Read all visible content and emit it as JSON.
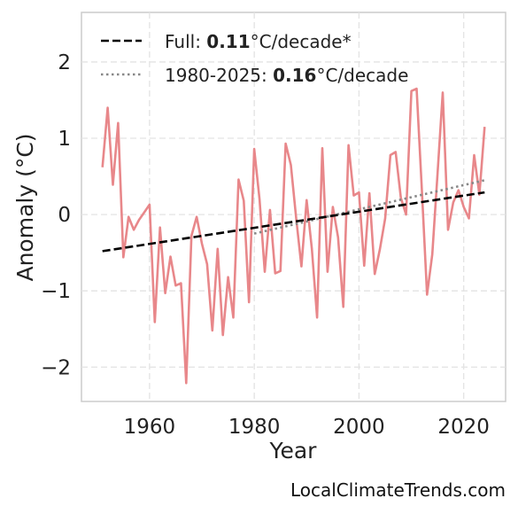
{
  "chart_data": {
    "type": "line",
    "title": "",
    "xlabel": "Year",
    "ylabel": "Anomaly (°C)",
    "xlim": [
      1947,
      2028
    ],
    "ylim": [
      -2.45,
      2.65
    ],
    "xticks": [
      1960,
      1980,
      2000,
      2020
    ],
    "yticks": [
      2,
      1,
      0,
      -1,
      -2
    ],
    "ytick_labels": [
      "2",
      "1",
      "0",
      "−1",
      "−2"
    ],
    "grid": true,
    "legend_position": "top-left",
    "series": [
      {
        "style": "solid",
        "color": "#e8878a",
        "x": [
          1951,
          1952,
          1953,
          1954,
          1955,
          1956,
          1957,
          1958,
          1959,
          1960,
          1961,
          1962,
          1963,
          1964,
          1965,
          1966,
          1967,
          1968,
          1969,
          1970,
          1971,
          1972,
          1973,
          1974,
          1975,
          1976,
          1977,
          1978,
          1979,
          1980,
          1981,
          1982,
          1983,
          1984,
          1985,
          1986,
          1987,
          1988,
          1989,
          1990,
          1991,
          1992,
          1993,
          1994,
          1995,
          1996,
          1997,
          1998,
          1999,
          2000,
          2001,
          2002,
          2003,
          2004,
          2005,
          2006,
          2007,
          2008,
          2009,
          2010,
          2011,
          2012,
          2013,
          2014,
          2015,
          2016,
          2017,
          2018,
          2019,
          2020,
          2021,
          2022,
          2023,
          2024
        ],
        "y": [
          0.62,
          1.4,
          0.39,
          1.2,
          -0.56,
          -0.03,
          -0.2,
          -0.07,
          0.03,
          0.13,
          -1.41,
          -0.17,
          -1.03,
          -0.55,
          -0.93,
          -0.9,
          -2.21,
          -0.28,
          -0.03,
          -0.38,
          -0.65,
          -1.52,
          -0.45,
          -1.58,
          -0.82,
          -1.35,
          0.46,
          0.18,
          -1.15,
          0.86,
          0.2,
          -0.75,
          0.06,
          -0.77,
          -0.74,
          0.93,
          0.65,
          -0.05,
          -0.68,
          0.19,
          -0.45,
          -1.35,
          0.87,
          -0.75,
          0.1,
          -0.3,
          -1.21,
          0.91,
          0.25,
          0.29,
          -0.67,
          0.28,
          -0.78,
          -0.45,
          -0.05,
          0.78,
          0.82,
          0.22,
          0.0,
          1.62,
          1.65,
          0.33,
          -1.05,
          -0.52,
          0.53,
          1.6,
          -0.2,
          0.16,
          0.32,
          0.1,
          -0.05,
          0.78,
          0.26,
          1.15
        ]
      },
      {
        "name": "Full: 0.11°C/decade*",
        "style": "dashed",
        "color": "#000000",
        "x": [
          1951,
          2024
        ],
        "y": [
          -0.48,
          0.29
        ]
      },
      {
        "name": "1980-2025: 0.16°C/decade",
        "style": "dotted",
        "color": "#888888",
        "x": [
          1980,
          2024
        ],
        "y": [
          -0.25,
          0.45
        ]
      }
    ],
    "legend": [
      {
        "prefix": "Full: ",
        "bold": "0.11",
        "suffix": "°C/decade*",
        "style": "dashed",
        "color": "#000000"
      },
      {
        "prefix": "1980-2025: ",
        "bold": "0.16",
        "suffix": "°C/decade",
        "style": "dotted",
        "color": "#888888"
      }
    ]
  },
  "credit": "LocalClimateTrends.com"
}
